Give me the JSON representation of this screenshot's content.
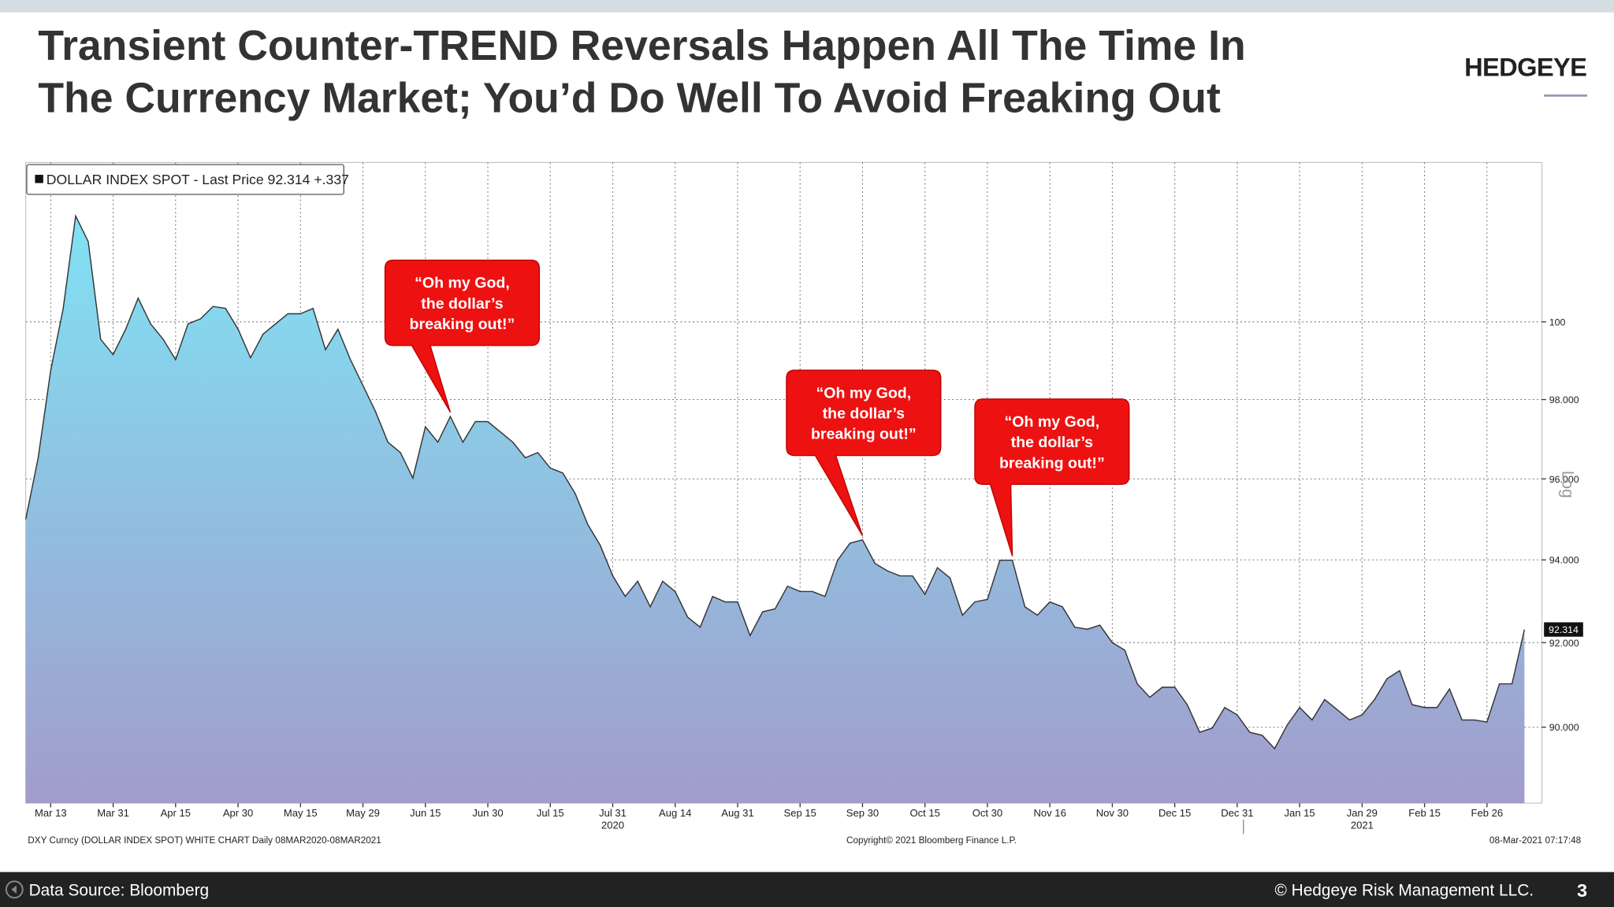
{
  "header": {
    "title_lines": [
      "Transient Counter-TREND Reversals Happen All The Time In",
      "The Currency Market; You’d Do Well To Avoid Freaking Out"
    ],
    "logo": "HEDGEYE"
  },
  "chart_data": {
    "type": "area",
    "categories": [
      null,
      null,
      "Mar 13",
      null,
      null,
      null,
      null,
      "Mar 31",
      null,
      null,
      null,
      null,
      "Apr 15",
      null,
      null,
      null,
      null,
      "Apr 30",
      null,
      null,
      null,
      null,
      "May 15",
      null,
      null,
      null,
      null,
      "May 29",
      null,
      null,
      null,
      null,
      "Jun 15",
      null,
      null,
      null,
      null,
      "Jun 30",
      null,
      null,
      null,
      null,
      "Jul 15",
      null,
      null,
      null,
      null,
      "Jul 31",
      null,
      null,
      null,
      null,
      "Aug 14",
      null,
      null,
      null,
      null,
      "Aug 31",
      null,
      null,
      null,
      null,
      "Sep 15",
      null,
      null,
      null,
      null,
      "Sep 30",
      null,
      null,
      null,
      null,
      "Oct 15",
      null,
      null,
      null,
      null,
      "Oct 30",
      null,
      null,
      null,
      null,
      "Nov 16",
      null,
      null,
      null,
      null,
      "Nov 30",
      null,
      null,
      null,
      null,
      "Dec 15",
      null,
      null,
      null,
      null,
      "Dec 31",
      null,
      null,
      null,
      null,
      "Jan 15",
      null,
      null,
      null,
      null,
      "Jan 29",
      null,
      null,
      null,
      null,
      "Feb 15",
      null,
      null,
      null,
      null,
      "Feb 26",
      null,
      null,
      null
    ],
    "year_labels": [
      "2020",
      "2021"
    ],
    "series": [
      {
        "name": "DOLLAR INDEX SPOT - Last Price 92.314 +.337",
        "color": "#333333",
        "fill_colors": [
          "#80e2f4",
          "#a29ccb"
        ],
        "values": [
          95.0,
          96.53,
          98.75,
          100.35,
          102.79,
          102.11,
          99.55,
          99.15,
          99.81,
          100.62,
          99.95,
          99.55,
          99.02,
          99.95,
          100.08,
          100.4,
          100.35,
          99.81,
          99.07,
          99.68,
          99.95,
          100.21,
          100.21,
          100.35,
          99.28,
          99.81,
          99.02,
          98.36,
          97.7,
          96.92,
          96.66,
          96.02,
          97.31,
          96.92,
          97.57,
          96.92,
          97.44,
          97.44,
          97.18,
          96.92,
          96.53,
          96.66,
          96.27,
          96.15,
          95.63,
          94.87,
          94.36,
          93.61,
          93.11,
          93.48,
          92.86,
          93.48,
          93.23,
          92.61,
          92.37,
          93.11,
          92.98,
          92.98,
          92.17,
          92.74,
          92.81,
          93.36,
          93.23,
          93.23,
          93.11,
          93.99,
          94.41,
          94.49,
          93.91,
          93.73,
          93.61,
          93.61,
          93.16,
          93.81,
          93.56,
          92.66,
          92.98,
          93.04,
          93.99,
          93.99,
          92.86,
          92.66,
          92.98,
          92.86,
          92.37,
          92.32,
          92.42,
          92.0,
          91.82,
          91.02,
          90.7,
          90.94,
          90.94,
          90.53,
          89.88,
          89.98,
          90.46,
          90.29,
          89.88,
          89.81,
          89.5,
          90.05,
          90.46,
          90.17,
          90.65,
          90.41,
          90.17,
          90.29,
          90.65,
          91.14,
          91.33,
          90.53,
          90.46,
          90.46,
          90.9,
          90.17,
          90.17,
          90.12,
          91.02,
          91.02,
          92.314
        ]
      }
    ],
    "ylim": [
      88.24,
      104.23
    ],
    "yticks": [
      {
        "value": 90,
        "label": "90.000"
      },
      {
        "value": 92,
        "label": "92.000"
      },
      {
        "value": 94,
        "label": "94.000"
      },
      {
        "value": 96,
        "label": "96.000"
      },
      {
        "value": 98,
        "label": "98.000"
      },
      100
    ],
    "log_scale": true,
    "log_label": "Log",
    "grid": true,
    "annotations": [
      {
        "lines": [
          "“Oh my God,",
          "the dollar’s",
          "breaking out!”"
        ],
        "color": "#ee1111"
      },
      {
        "lines": [
          "“Oh my God,",
          "the dollar’s",
          "breaking out!”"
        ],
        "color": "#ee1111"
      },
      {
        "lines": [
          "“Oh my God,",
          "the dollar’s",
          "breaking out!”"
        ],
        "color": "#ee1111"
      }
    ],
    "footnotes": [
      "DXY Curncy (DOLLAR INDEX SPOT) WHITE CHART  Daily 08MAR2020-08MAR2021",
      "Copyright© 2021 Bloomberg Finance L.P.",
      "08-Mar-2021 07:17:48"
    ]
  },
  "footer": {
    "source": "Data Source: Bloomberg",
    "copyright": "© Hedgeye Risk Management LLC.",
    "page": "3"
  }
}
